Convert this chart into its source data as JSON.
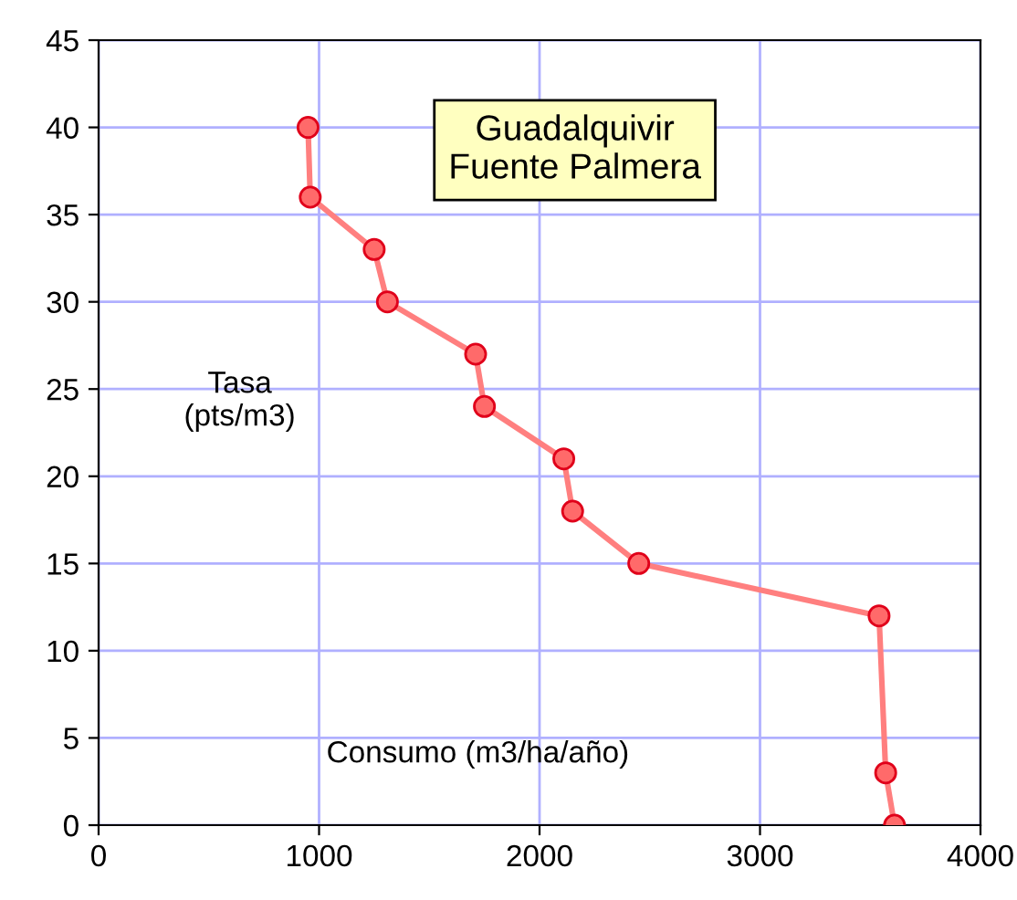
{
  "chart_data": {
    "type": "line",
    "title": "Guadalquivir\nFuente Palmera",
    "xlabel": "Consumo (m3/ha/año)",
    "ylabel": "Tasa\n(pts/m3)",
    "series": [
      {
        "color": "#ff7f7f",
        "x": [
          950,
          960,
          1250,
          1310,
          1710,
          1750,
          2110,
          2150,
          2450,
          3540,
          3570,
          3610
        ],
        "values": [
          40,
          36,
          33,
          30,
          27,
          24,
          21,
          18,
          15,
          12,
          3,
          0
        ]
      }
    ],
    "xlim": [
      0,
      4000
    ],
    "xticks": [
      0,
      1000,
      2000,
      3000,
      4000
    ],
    "ylim": [
      0,
      45
    ],
    "yticks": [
      0,
      5,
      10,
      15,
      20,
      25,
      30,
      35,
      40,
      45
    ],
    "grid": true,
    "marker": "circle",
    "line_style": "solid"
  }
}
